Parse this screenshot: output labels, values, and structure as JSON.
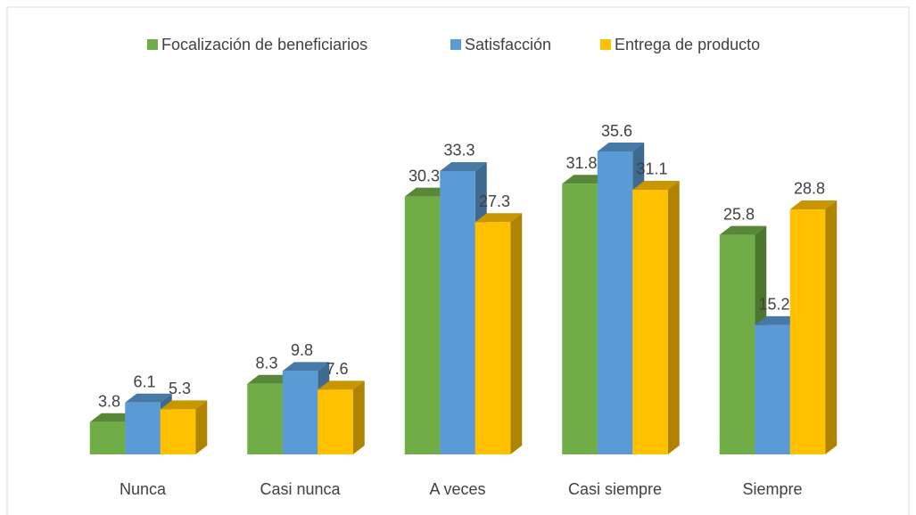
{
  "chart_data": {
    "type": "bar3d",
    "categories": [
      "Nunca",
      "Casi nunca",
      "A veces",
      "Casi siempre",
      "Siempre"
    ],
    "series": [
      {
        "name": "Focalización de beneficiarios",
        "color": "#70ad47",
        "values": [
          3.8,
          8.3,
          30.3,
          31.8,
          25.8
        ]
      },
      {
        "name": "Satisfacción",
        "color": "#5b9bd5",
        "values": [
          6.1,
          9.8,
          33.3,
          35.6,
          15.2
        ]
      },
      {
        "name": "Entrega de producto",
        "color": "#ffc000",
        "values": [
          5.3,
          7.6,
          27.3,
          31.1,
          28.8
        ]
      }
    ],
    "legend": "top"
  }
}
